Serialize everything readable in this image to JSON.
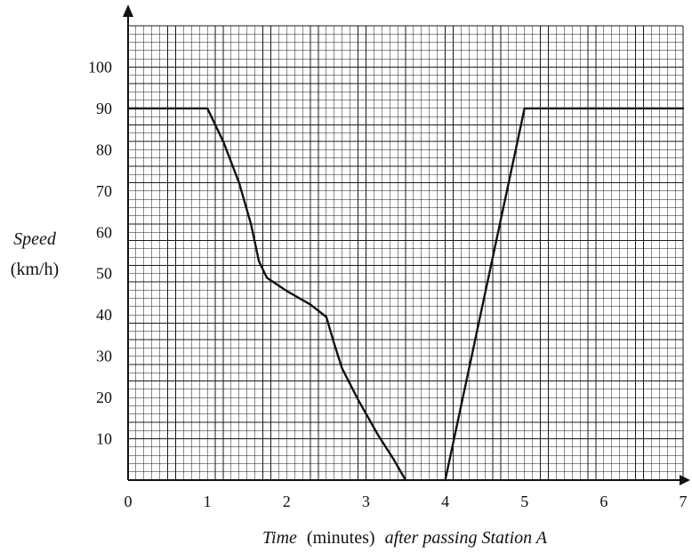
{
  "chart_data": {
    "type": "line",
    "title": "",
    "ylabel": {
      "primary": "Speed",
      "secondary": "(km/h)"
    },
    "xlabel": {
      "primary": "Time",
      "secondary": "(minutes)",
      "suffix": "after passing Station A"
    },
    "xlim": [
      0,
      7
    ],
    "ylim": [
      0,
      110
    ],
    "x_ticks": [
      "0",
      "1",
      "2",
      "3",
      "4",
      "5",
      "6",
      "7"
    ],
    "y_ticks": [
      "10",
      "20",
      "30",
      "40",
      "50",
      "60",
      "70",
      "80",
      "90",
      "100"
    ],
    "grid": true,
    "minor_grid_step": {
      "x": 0.1,
      "y": 2
    },
    "series": [
      {
        "points": [
          {
            "x": 0,
            "y": 90
          },
          {
            "x": 1,
            "y": 90
          },
          {
            "x": 1.2,
            "y": 82
          },
          {
            "x": 1.4,
            "y": 72
          },
          {
            "x": 1.55,
            "y": 62
          },
          {
            "x": 1.65,
            "y": 53
          },
          {
            "x": 1.75,
            "y": 49
          },
          {
            "x": 2.0,
            "y": 45.8
          },
          {
            "x": 2.3,
            "y": 42.5
          },
          {
            "x": 2.5,
            "y": 39.5
          },
          {
            "x": 2.6,
            "y": 33
          },
          {
            "x": 2.7,
            "y": 27
          },
          {
            "x": 2.9,
            "y": 19.5
          },
          {
            "x": 3.15,
            "y": 11
          },
          {
            "x": 3.35,
            "y": 5
          },
          {
            "x": 3.5,
            "y": 0
          }
        ]
      },
      {
        "points": [
          {
            "x": 4,
            "y": 0
          },
          {
            "x": 5,
            "y": 90
          },
          {
            "x": 7,
            "y": 90
          }
        ]
      }
    ]
  }
}
